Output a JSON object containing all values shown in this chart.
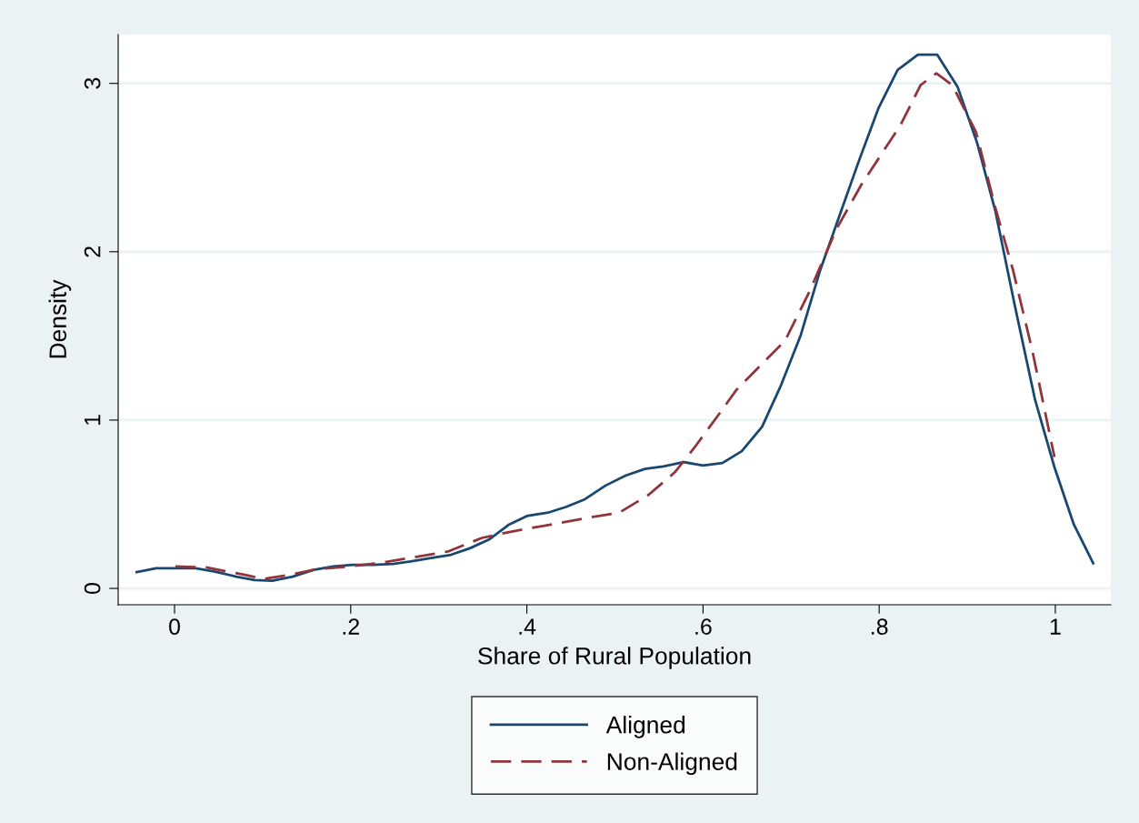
{
  "chart_data": {
    "type": "line",
    "xlabel": "Share of Rural Population",
    "ylabel": "Density",
    "xlim": [
      -0.064,
      1.063
    ],
    "ylim": [
      -0.097,
      3.29
    ],
    "xticks": [
      0,
      {
        "value": 0.2,
        "label": ".2"
      },
      {
        "value": 0.4,
        "label": ".4"
      },
      {
        "value": 0.6,
        "label": ".6"
      },
      {
        "value": 0.8,
        "label": ".8"
      },
      1
    ],
    "yticks": [
      0,
      1,
      2,
      3
    ],
    "grid": "y",
    "legend": "bottom",
    "marker": "none",
    "series": [
      {
        "name": "Aligned",
        "color": "#1a476f",
        "line_style": "solid",
        "x": [
          -0.043,
          -0.021,
          0.0,
          0.024,
          0.046,
          0.07,
          0.091,
          0.111,
          0.134,
          0.158,
          0.18,
          0.202,
          0.225,
          0.248,
          0.268,
          0.291,
          0.314,
          0.336,
          0.357,
          0.38,
          0.4,
          0.424,
          0.445,
          0.466,
          0.489,
          0.512,
          0.534,
          0.555,
          0.578,
          0.6,
          0.622,
          0.644,
          0.667,
          0.688,
          0.711,
          0.733,
          0.754,
          0.777,
          0.799,
          0.821,
          0.844,
          0.866,
          0.889,
          0.911,
          0.932,
          0.954,
          0.977,
          0.999,
          1.021,
          1.043
        ],
        "values": [
          0.097,
          0.12,
          0.12,
          0.12,
          0.1,
          0.07,
          0.05,
          0.045,
          0.07,
          0.11,
          0.13,
          0.14,
          0.14,
          0.145,
          0.16,
          0.18,
          0.2,
          0.24,
          0.29,
          0.38,
          0.43,
          0.45,
          0.485,
          0.53,
          0.61,
          0.67,
          0.71,
          0.725,
          0.75,
          0.73,
          0.745,
          0.815,
          0.96,
          1.2,
          1.505,
          1.89,
          2.2,
          2.54,
          2.85,
          3.08,
          3.17,
          3.17,
          2.98,
          2.65,
          2.24,
          1.68,
          1.12,
          0.72,
          0.38,
          0.15
        ]
      },
      {
        "name": "Non-Aligned",
        "color": "#90353b",
        "line_style": "dashed",
        "x": [
          0.001,
          0.036,
          0.08,
          0.101,
          0.129,
          0.163,
          0.197,
          0.232,
          0.266,
          0.311,
          0.349,
          0.38,
          0.417,
          0.464,
          0.505,
          0.538,
          0.568,
          0.59,
          0.616,
          0.638,
          0.671,
          0.693,
          0.721,
          0.752,
          0.78,
          0.824,
          0.847,
          0.865,
          0.883,
          0.91,
          0.932,
          0.952,
          0.974,
          0.999
        ],
        "values": [
          0.13,
          0.125,
          0.08,
          0.056,
          0.08,
          0.115,
          0.13,
          0.15,
          0.18,
          0.22,
          0.3,
          0.335,
          0.37,
          0.415,
          0.45,
          0.555,
          0.69,
          0.835,
          1.02,
          1.18,
          1.355,
          1.47,
          1.765,
          2.14,
          2.4,
          2.75,
          2.99,
          3.06,
          2.99,
          2.71,
          2.26,
          1.89,
          1.41,
          0.78
        ]
      }
    ]
  }
}
